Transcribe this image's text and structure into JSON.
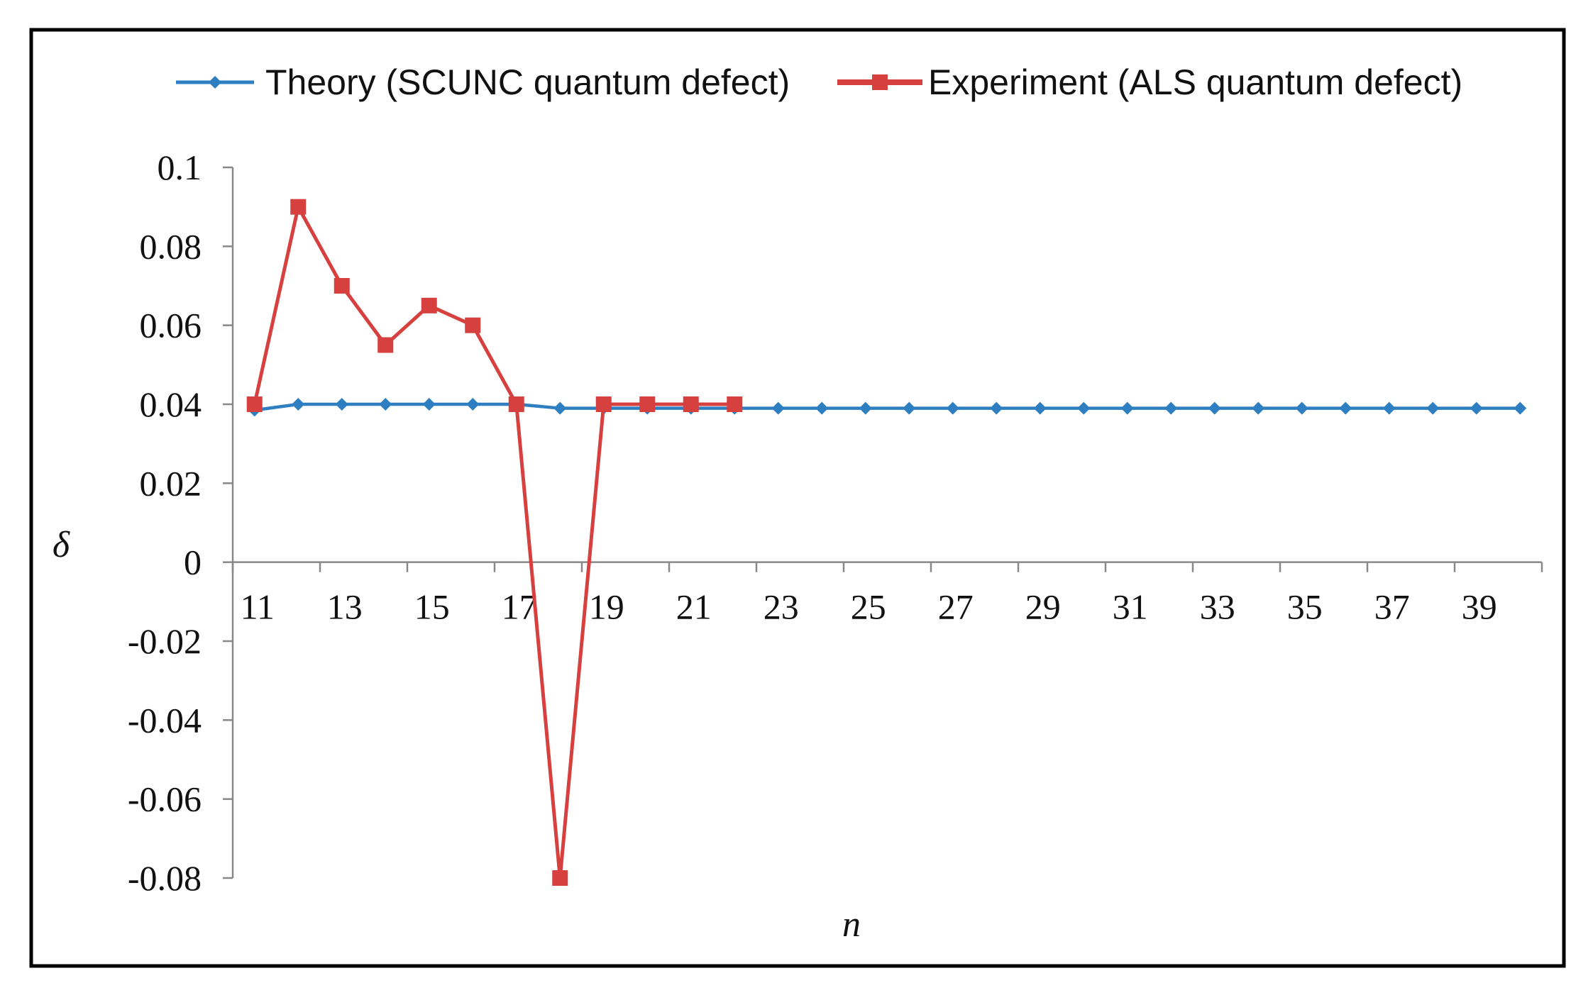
{
  "chart_data": {
    "type": "line",
    "xlabel": "n",
    "ylabel": "δ",
    "x_categories": [
      "11",
      "12",
      "13",
      "14",
      "15",
      "16",
      "17",
      "18",
      "19",
      "20",
      "21",
      "22",
      "23",
      "24",
      "25",
      "26",
      "27",
      "28",
      "29",
      "30",
      "31",
      "32",
      "33",
      "34",
      "35",
      "36",
      "37",
      "38",
      "39",
      "40"
    ],
    "x_tick_labels": [
      "11",
      "13",
      "15",
      "17",
      "19",
      "21",
      "23",
      "25",
      "27",
      "29",
      "31",
      "33",
      "35",
      "37",
      "39"
    ],
    "ylim": [
      -0.08,
      0.1
    ],
    "y_ticks": [
      -0.08,
      -0.06,
      -0.04,
      -0.02,
      0,
      0.02,
      0.04,
      0.06,
      0.08,
      0.1
    ],
    "y_tick_labels": [
      "-0.08",
      "-0.06",
      "-0.04",
      "-0.02",
      "0",
      "0.02",
      "0.04",
      "0.06",
      "0.08",
      "0.1"
    ],
    "grid": false,
    "legend_position": "top",
    "series": [
      {
        "name": "Theory (SCUNC quantum defect)",
        "color": "#2e7fc1",
        "marker": "diamond",
        "x": [
          11,
          12,
          13,
          14,
          15,
          16,
          17,
          18,
          19,
          20,
          21,
          22,
          23,
          24,
          25,
          26,
          27,
          28,
          29,
          30,
          31,
          32,
          33,
          34,
          35,
          36,
          37,
          38,
          39,
          40
        ],
        "values": [
          0.0385,
          0.04,
          0.04,
          0.04,
          0.04,
          0.04,
          0.04,
          0.039,
          0.039,
          0.039,
          0.039,
          0.039,
          0.039,
          0.039,
          0.039,
          0.039,
          0.039,
          0.039,
          0.039,
          0.039,
          0.039,
          0.039,
          0.039,
          0.039,
          0.039,
          0.039,
          0.039,
          0.039,
          0.039,
          0.039
        ]
      },
      {
        "name": "Experiment (ALS quantum defect)",
        "color": "#d6403f",
        "marker": "square",
        "x": [
          11,
          12,
          13,
          14,
          15,
          16,
          17,
          18,
          19,
          20,
          21,
          22
        ],
        "values": [
          0.04,
          0.09,
          0.07,
          0.055,
          0.065,
          0.06,
          0.04,
          -0.08,
          0.04,
          0.04,
          0.04,
          0.04
        ]
      }
    ]
  }
}
